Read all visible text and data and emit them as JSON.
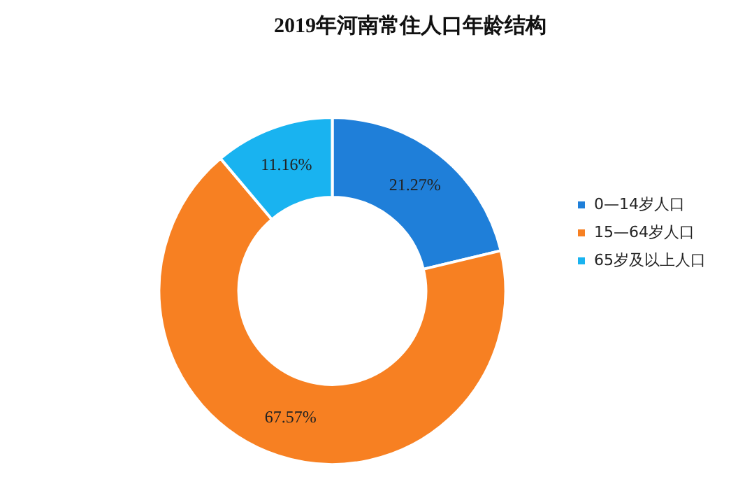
{
  "chart_data": {
    "type": "donut",
    "title": "2019年河南常住人口年龄结构",
    "categories": [
      "0—14岁人口",
      "15—64岁人口",
      "65岁及以上人口"
    ],
    "values": [
      21.27,
      67.57,
      11.16
    ],
    "colors": [
      "#1f7fd9",
      "#f78022",
      "#19b3f0"
    ],
    "value_labels": [
      "21.27%",
      "67.57%",
      "11.16%"
    ],
    "legend": "right"
  }
}
